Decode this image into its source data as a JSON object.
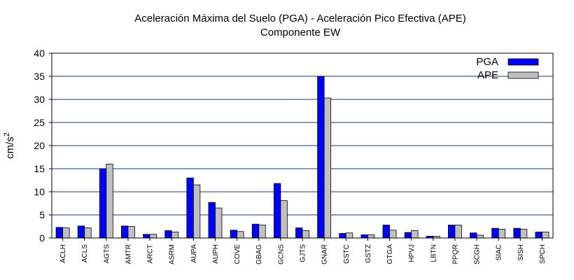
{
  "chart_data": {
    "type": "bar",
    "title": "Aceleración Máxima del Suelo (PGA) -  Aceleración Pico Efectiva (APE)",
    "subtitle": "Componente EW",
    "ylabel_base": "cm/s",
    "ylabel_exp": "2",
    "ylim": [
      0,
      40
    ],
    "yticks": [
      0,
      5,
      10,
      15,
      20,
      25,
      30,
      35,
      40
    ],
    "grid": true,
    "legend_position": "top-right",
    "categories": [
      "ACLH",
      "ACLS",
      "AGTS",
      "AMTR",
      "ARCT",
      "ASRM",
      "AUPA",
      "AUPH",
      "COVE",
      "GBAG",
      "GCNS",
      "GJTS",
      "GNAR",
      "GSTC",
      "GSTZ",
      "GTGA",
      "HPVJ",
      "LBTN",
      "PPQR",
      "SCGH",
      "SIAC",
      "SISH",
      "SPCH"
    ],
    "series": [
      {
        "name": "PGA",
        "color": "#0000ff",
        "values": [
          2.3,
          2.6,
          15.0,
          2.6,
          0.8,
          1.6,
          13.0,
          7.7,
          1.7,
          3.0,
          11.8,
          2.2,
          35.0,
          1.0,
          0.7,
          2.8,
          1.2,
          0.4,
          2.8,
          1.1,
          2.1,
          2.1,
          1.3
        ]
      },
      {
        "name": "APE",
        "color": "#c0c0c0",
        "values": [
          2.2,
          2.2,
          16.0,
          2.5,
          0.8,
          1.3,
          11.5,
          6.5,
          1.4,
          2.8,
          8.1,
          1.6,
          30.3,
          1.1,
          0.7,
          1.7,
          1.6,
          0.4,
          2.8,
          0.6,
          1.9,
          1.9,
          1.3
        ]
      }
    ]
  }
}
